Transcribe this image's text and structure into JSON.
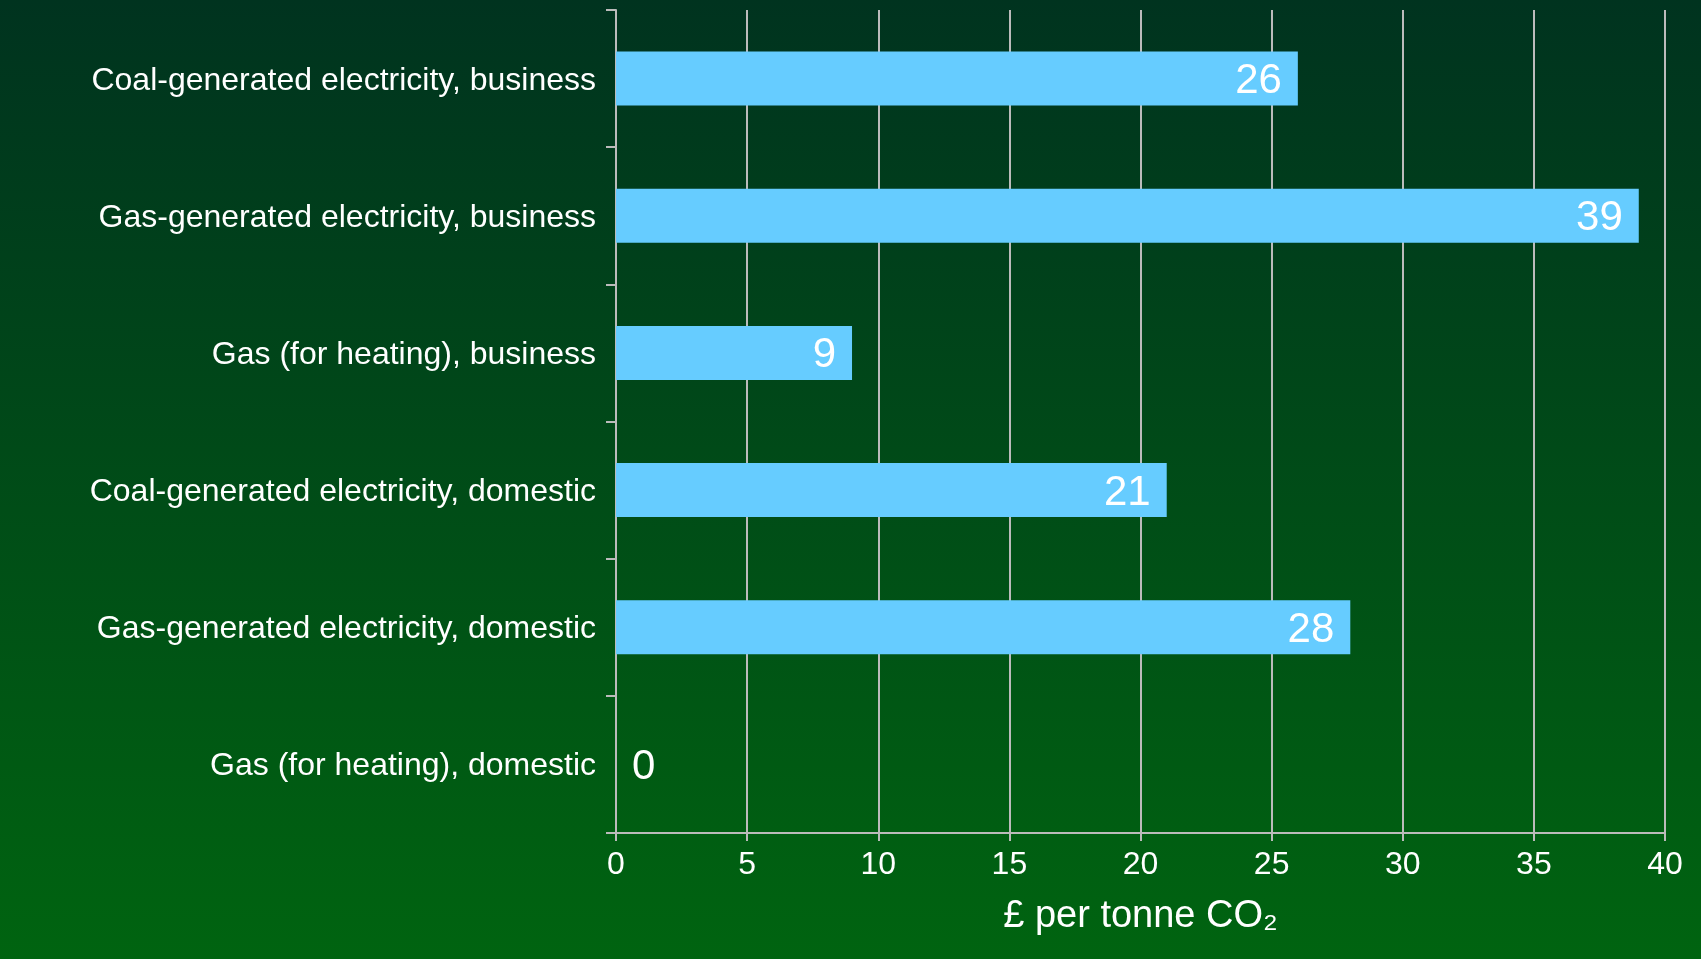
{
  "chart_data": {
    "type": "bar",
    "orientation": "horizontal",
    "xlabel": "£ per tonne CO₂",
    "categories": [
      "Coal-generated electricity, business",
      "Gas-generated electricity, business",
      "Gas (for heating), business",
      "Coal-generated electricity, domestic",
      "Gas-generated electricity, domestic",
      "Gas (for heating), domestic"
    ],
    "values": [
      26,
      39,
      9,
      21,
      28,
      0
    ],
    "color": "#66ccff",
    "xlim": [
      0,
      40
    ],
    "xticks": [
      0,
      5,
      10,
      15,
      20,
      25,
      30,
      35,
      40
    ],
    "grid": "x",
    "data_labels": true
  }
}
